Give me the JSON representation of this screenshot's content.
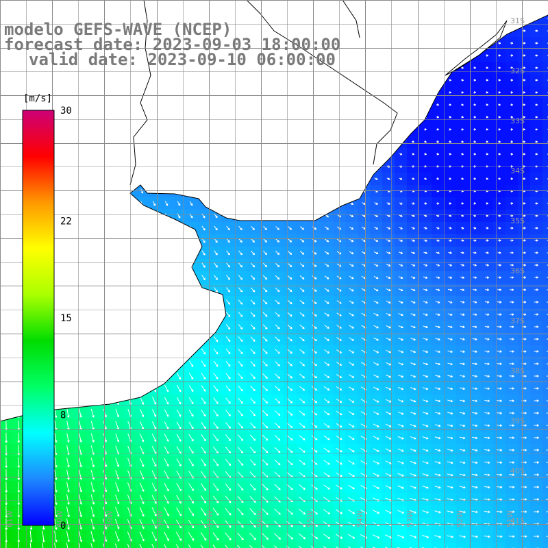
{
  "title": {
    "line1": "modelo GEFS-WAVE (NCEP)",
    "line2": "forecast date: 2023-09-03 18:00:00",
    "line3": "valid date: 2023-09-10 06:00:00"
  },
  "colorbar": {
    "unit": "[m/s]",
    "min": 0,
    "max": 30,
    "ticks": [
      "30",
      "22",
      "15",
      "8",
      "0"
    ],
    "tick_values": [
      30,
      22,
      15,
      8,
      0
    ],
    "colors": [
      "#0000ff",
      "#1e88ff",
      "#00ffff",
      "#00ff66",
      "#00dd00",
      "#aaff00",
      "#ffff00",
      "#ff9900",
      "#ff0000",
      "#cc0077"
    ]
  },
  "map_info": {
    "variable": "wind speed",
    "lon_range": [
      -61,
      -50.5
    ],
    "lat_range": [
      -41.5,
      -30
    ],
    "lat_labels": [
      "31S",
      "32S",
      "33S",
      "34S",
      "35S",
      "36S",
      "37S",
      "38S",
      "39S",
      "40S",
      "41S"
    ],
    "lon_labels": [
      "61W",
      "60W",
      "59W",
      "58W",
      "57W",
      "56W",
      "55W",
      "54W",
      "53W",
      "52W",
      "51W"
    ]
  }
}
